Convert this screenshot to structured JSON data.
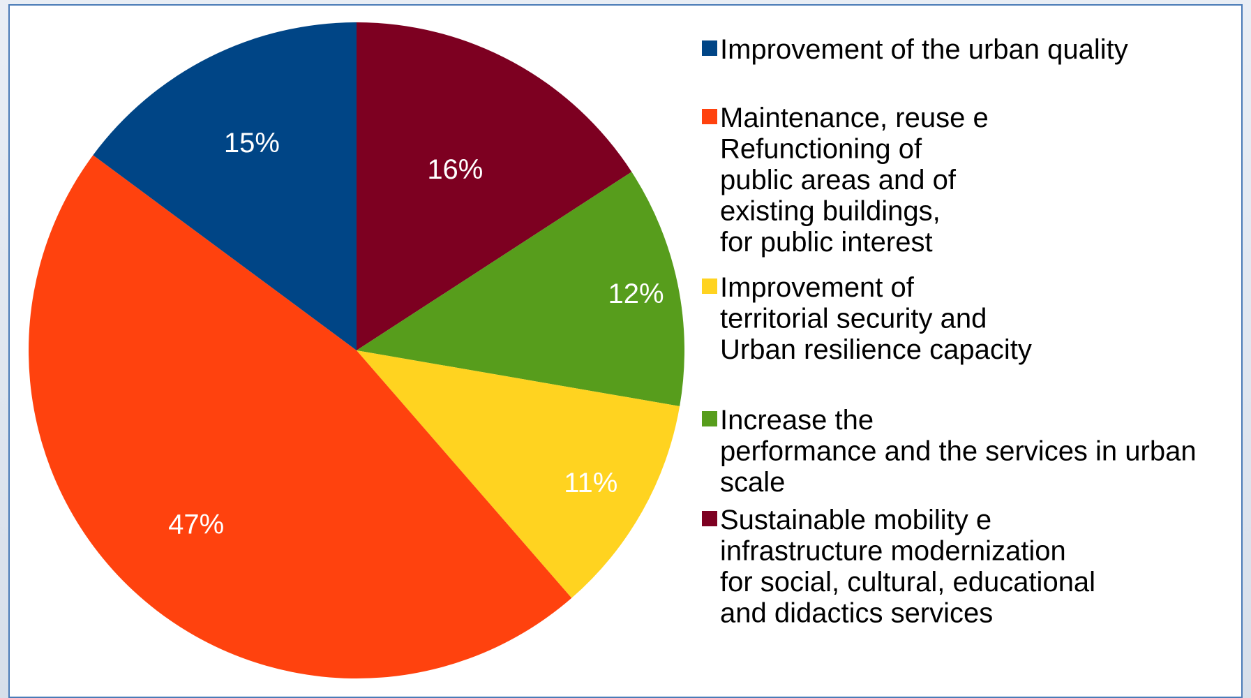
{
  "chart_data": {
    "type": "pie",
    "title": "",
    "slices": [
      {
        "label": "Sustainable mobility e infrastructure modernization for social, cultural, educational and didactics services",
        "value": 16,
        "display": "16%",
        "color": "#7d0021"
      },
      {
        "label": "Increase the performance and the services in urban scale",
        "value": 12,
        "display": "12%",
        "color": "#579d1c"
      },
      {
        "label": "Improvement of territorial security and Urban resilience capacity",
        "value": 11,
        "display": "11%",
        "color": "#ffd320"
      },
      {
        "label": "Maintenance, reuse e Refunctioning of public areas and of existing buildings, for public interest",
        "value": 47,
        "display": "47%",
        "color": "#ff420e"
      },
      {
        "label": "Improvement of the urban quality",
        "value": 15,
        "display": "15%",
        "color": "#004586"
      }
    ],
    "legend": {
      "position": "right",
      "entries": [
        {
          "color": "#004586",
          "lines": [
            "Improvement of the urban quality"
          ]
        },
        {
          "color": "#ff420e",
          "lines": [
            "Maintenance, reuse e",
            "Refunctioning of",
            "public areas and of",
            "existing buildings,",
            "for public interest"
          ]
        },
        {
          "color": "#ffd320",
          "lines": [
            "Improvement of",
            "territorial security and",
            "Urban resilience capacity"
          ]
        },
        {
          "color": "#579d1c",
          "lines": [
            "Increase the",
            "performance and the services in urban",
            "scale"
          ]
        },
        {
          "color": "#7d0021",
          "lines": [
            "Sustainable mobility e",
            "infrastructure modernization",
            "for social, cultural, educational",
            "and didactics services"
          ]
        }
      ]
    }
  }
}
